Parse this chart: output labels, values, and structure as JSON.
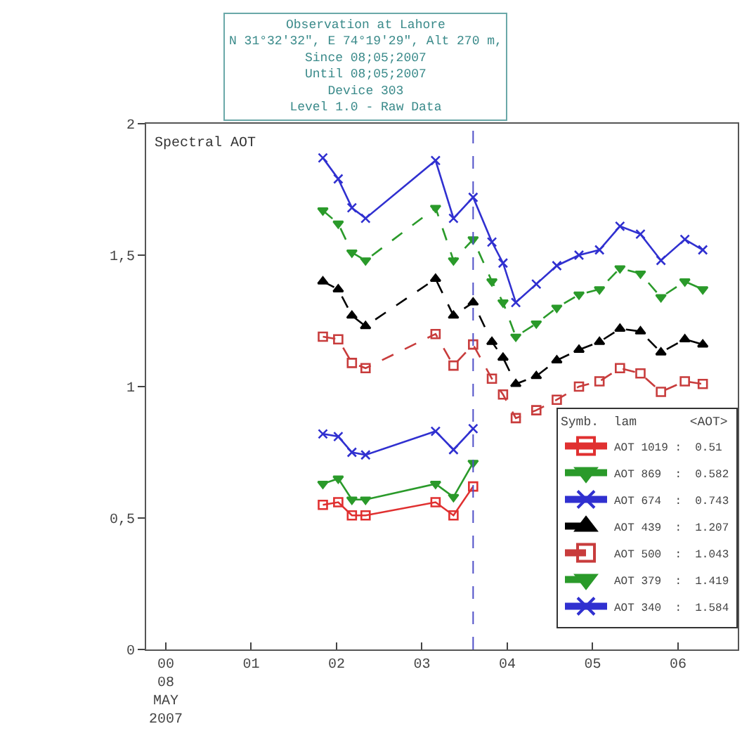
{
  "chart_data": {
    "type": "line",
    "title": "Observation at Lahore\nN 31°32'32\", E 74°19'29\", Alt 270 m,\nSince 08;05;2007\nUntil 08;05;2007\nDevice 303\nLevel 1.0 - Raw Data",
    "ylabel": "Spectral AOT",
    "legend_title": "Symb.  lam       <AOT>",
    "x": [
      1.84,
      2.02,
      2.18,
      2.34,
      3.16,
      3.37,
      3.6,
      3.82,
      3.95,
      4.1,
      4.34,
      4.58,
      4.84,
      5.08,
      5.32,
      5.56,
      5.8,
      6.08,
      6.29
    ],
    "series": [
      {
        "name": "AOT 1019 :  0.51",
        "color": "#e03030",
        "marker": "square",
        "line_style": "solid",
        "values": [
          0.55,
          0.56,
          0.51,
          0.51,
          0.56,
          0.51,
          0.62,
          null,
          null,
          null,
          null,
          null,
          null,
          null,
          null,
          null,
          null,
          null,
          null
        ]
      },
      {
        "name": "AOT 869  :  0.582",
        "color": "#2a9a2a",
        "marker": "triangle-down",
        "line_style": "solid",
        "values": [
          0.63,
          0.65,
          0.57,
          0.57,
          0.63,
          0.58,
          0.71,
          null,
          null,
          null,
          null,
          null,
          null,
          null,
          null,
          null,
          null,
          null,
          null
        ]
      },
      {
        "name": "AOT 674  :  0.743",
        "color": "#3030d0",
        "marker": "cross",
        "line_style": "solid",
        "values": [
          0.82,
          0.81,
          0.75,
          0.74,
          0.83,
          0.76,
          0.84,
          null,
          null,
          null,
          null,
          null,
          null,
          null,
          null,
          null,
          null,
          null,
          null
        ]
      },
      {
        "name": "AOT 439  :  1.207",
        "color": "#000000",
        "marker": "triangle",
        "line_style": "dashed",
        "values": [
          1.4,
          1.37,
          1.27,
          1.23,
          1.41,
          1.27,
          1.32,
          1.17,
          1.11,
          1.01,
          1.04,
          1.1,
          1.14,
          1.17,
          1.22,
          1.21,
          1.13,
          1.18,
          1.16
        ]
      },
      {
        "name": "AOT 500  :  1.043",
        "color": "#c83c3c",
        "marker": "square",
        "line_style": "dashed",
        "values": [
          1.19,
          1.18,
          1.09,
          1.07,
          1.2,
          1.08,
          1.16,
          1.03,
          0.97,
          0.88,
          0.91,
          0.95,
          1.0,
          1.02,
          1.07,
          1.05,
          0.98,
          1.02,
          1.01
        ]
      },
      {
        "name": "AOT 379  :  1.419",
        "color": "#2a9a2a",
        "marker": "triangle-down",
        "line_style": "dashed",
        "values": [
          1.67,
          1.62,
          1.51,
          1.48,
          1.68,
          1.48,
          1.56,
          1.4,
          1.32,
          1.19,
          1.24,
          1.3,
          1.35,
          1.37,
          1.45,
          1.43,
          1.34,
          1.4,
          1.37
        ]
      },
      {
        "name": "AOT 340  :  1.584",
        "color": "#3030d0",
        "marker": "cross",
        "line_style": "solid",
        "values": [
          1.87,
          1.79,
          1.68,
          1.64,
          1.86,
          1.64,
          1.72,
          1.55,
          1.47,
          1.32,
          1.39,
          1.46,
          1.5,
          1.52,
          1.61,
          1.58,
          1.48,
          1.56,
          1.52
        ]
      }
    ],
    "xlim": [
      -0.23,
      6.7
    ],
    "xticks": [
      {
        "value": 0,
        "label": "00\n08\nMAY\n2007"
      },
      {
        "value": 1,
        "label": "01"
      },
      {
        "value": 2,
        "label": "02"
      },
      {
        "value": 3,
        "label": "03"
      },
      {
        "value": 4,
        "label": "04"
      },
      {
        "value": 5,
        "label": "05"
      },
      {
        "value": 6,
        "label": "06"
      }
    ],
    "ylim": [
      0,
      2
    ],
    "yticks": [
      0,
      {
        "value": 0.5,
        "label": "0,5"
      },
      1,
      {
        "value": 1.5,
        "label": "1,5"
      },
      2
    ],
    "ref_lines": [
      {
        "axis": "x",
        "value": 3.6,
        "color": "#5050c8",
        "line_style": "dashed"
      }
    ],
    "legend": "bottom right"
  }
}
